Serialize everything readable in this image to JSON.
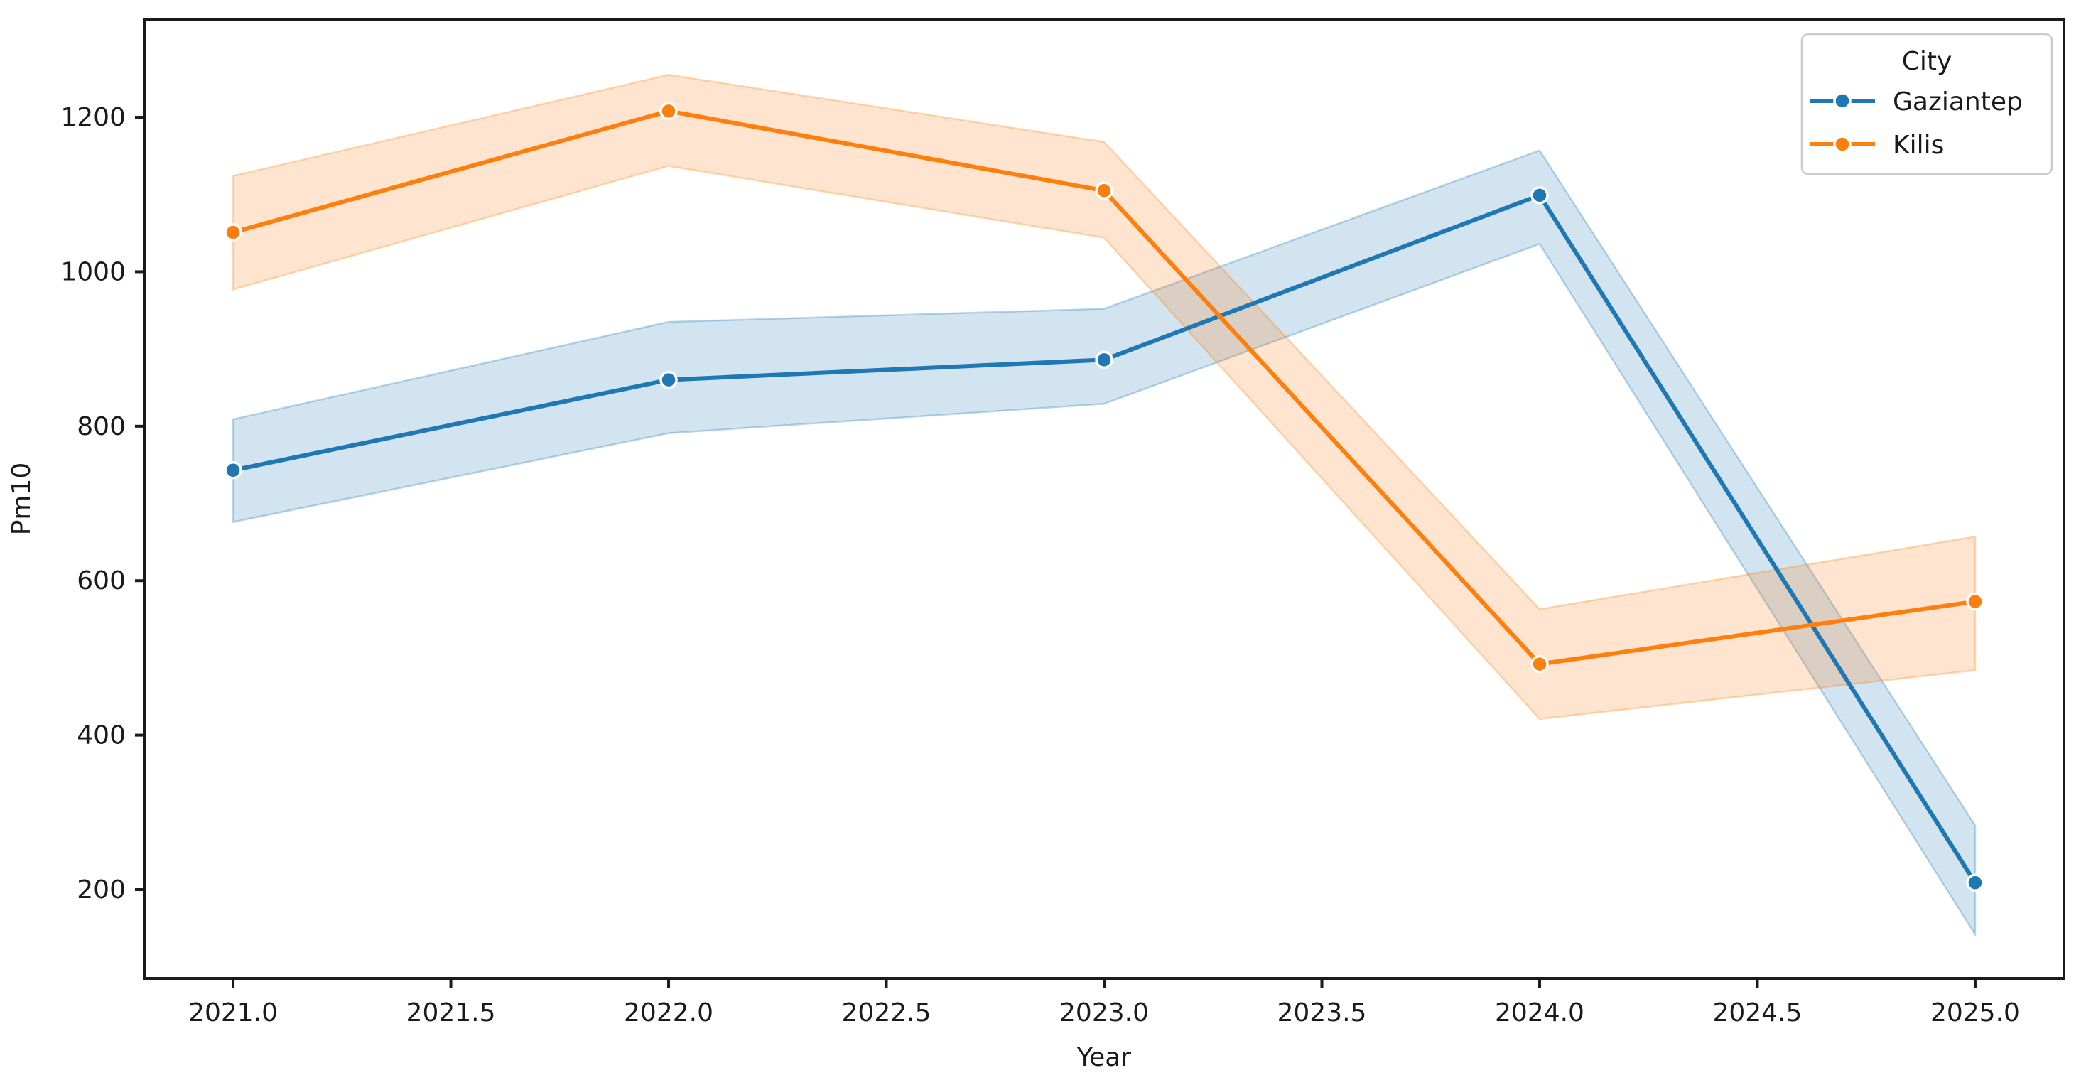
{
  "chart_data": {
    "type": "line",
    "title": "",
    "xlabel": "Year",
    "ylabel": "Pm10",
    "x": [
      2021,
      2022,
      2023,
      2024,
      2025
    ],
    "series": [
      {
        "name": "Gaziantep",
        "color": "#1f77b4",
        "values": [
          743,
          860,
          886,
          1099,
          209
        ],
        "band_low": [
          676,
          791,
          829,
          1036,
          142
        ],
        "band_high": [
          809,
          935,
          952,
          1157,
          283
        ]
      },
      {
        "name": "Kilis",
        "color": "#ff7f0e",
        "values": [
          1051,
          1208,
          1105,
          492,
          573
        ],
        "band_low": [
          977,
          1137,
          1044,
          421,
          484
        ],
        "band_high": [
          1124,
          1255,
          1168,
          563,
          657
        ]
      }
    ],
    "xlim": [
      2020.796,
      2025.204
    ],
    "ylim": [
      85,
      1327
    ],
    "xticks": [
      2021.0,
      2021.5,
      2022.0,
      2022.5,
      2023.0,
      2023.5,
      2024.0,
      2024.5,
      2025.0
    ],
    "xtick_labels": [
      "2021.0",
      "2021.5",
      "2022.0",
      "2022.5",
      "2023.0",
      "2023.5",
      "2024.0",
      "2024.5",
      "2025.0"
    ],
    "yticks": [
      200,
      400,
      600,
      800,
      1000,
      1200
    ],
    "ytick_labels": [
      "200",
      "400",
      "600",
      "800",
      "1000",
      "1200"
    ],
    "legend": {
      "title": "City",
      "position": "upper-right"
    },
    "band_opacity": 0.2,
    "grid": false,
    "spine_color": "#1a1a1a",
    "background_color": "#ffffff"
  }
}
